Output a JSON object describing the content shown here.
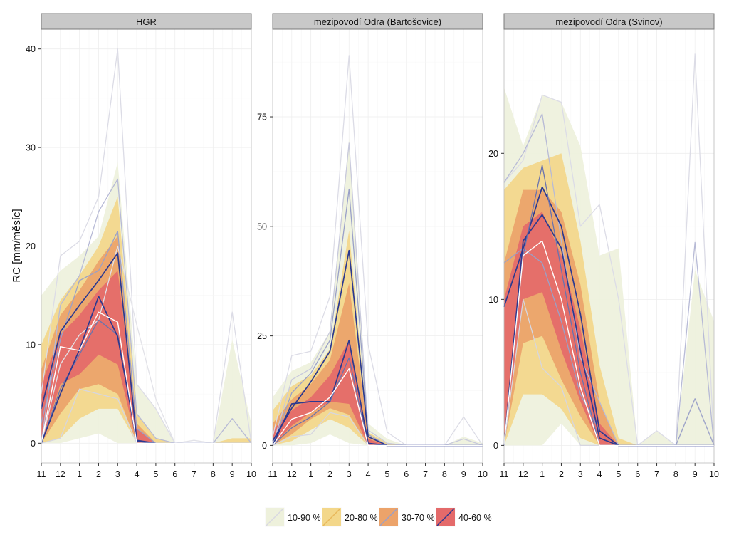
{
  "chart_data": {
    "type": "area",
    "ylabel": "RC [mm/měsíc]",
    "months": [
      "11",
      "12",
      "1",
      "2",
      "3",
      "4",
      "5",
      "6",
      "7",
      "8",
      "9",
      "10"
    ],
    "legend_position": "bottom",
    "band_colors": {
      "10-90": "#eef1dc",
      "20-80": "#f3d78a",
      "30-70": "#eca36a",
      "40-60": "#e46a6a"
    },
    "legend": [
      {
        "label": "10-90 %",
        "fill": "#eef1dc",
        "line": "#d8d8e2"
      },
      {
        "label": "20-80 %",
        "fill": "#f3d78a",
        "line": "#e8b75a"
      },
      {
        "label": "30-70 %",
        "fill": "#eca36a",
        "line": "#9aa0c8"
      },
      {
        "label": "40-60 %",
        "fill": "#e46a6a",
        "line": "#2b3990"
      }
    ],
    "panels": [
      {
        "title": "HGR",
        "ylim": [
          -2,
          42
        ],
        "yticks": [
          0,
          10,
          20,
          30,
          40
        ],
        "bands": [
          {
            "level": "10-90",
            "upper": [
              15.0,
              17.5,
              19.0,
              21.0,
              28.5,
              6.0,
              3.5,
              0,
              0,
              0,
              10.5,
              2.0
            ],
            "lower": [
              0,
              0,
              0.5,
              1.0,
              0,
              0,
              0,
              0,
              0,
              0,
              0,
              0
            ]
          },
          {
            "level": "20-80",
            "upper": [
              10.0,
              14.5,
              17.0,
              20.0,
              25.0,
              3.0,
              0.5,
              0,
              0,
              0,
              0.5,
              0.5
            ],
            "lower": [
              0,
              0.5,
              2.5,
              3.5,
              3.5,
              0,
              0,
              0,
              0,
              0,
              0,
              0
            ]
          },
          {
            "level": "30-70",
            "upper": [
              7.5,
              13.0,
              15.5,
              18.5,
              21.0,
              2.0,
              0,
              0,
              0,
              0,
              0,
              0
            ],
            "lower": [
              0,
              3.0,
              5.5,
              6.0,
              5.0,
              0,
              0,
              0,
              0,
              0,
              0,
              0
            ]
          },
          {
            "level": "40-60",
            "upper": [
              6.0,
              11.0,
              13.0,
              15.5,
              17.5,
              1.5,
              0,
              0,
              0,
              0,
              0,
              0
            ],
            "lower": [
              0,
              6.0,
              7.0,
              9.0,
              8.0,
              0,
              0,
              0,
              0,
              0,
              0,
              0
            ]
          }
        ],
        "lines": [
          {
            "color": "#dcdce6",
            "values": [
              5.0,
              19.0,
              20.5,
              25.0,
              40.0,
              6.0,
              3.5,
              0,
              0,
              0,
              13.3,
              0
            ]
          },
          {
            "color": "#e2e2e8",
            "values": [
              0,
              8.0,
              11.0,
              12.5,
              20.0,
              12.0,
              4.5,
              0,
              0.3,
              0,
              0,
              0
            ]
          },
          {
            "color": "#b7bad6",
            "values": [
              0,
              14.0,
              17.0,
              23.5,
              26.8,
              3.0,
              0.5,
              0,
              0,
              0,
              2.5,
              0
            ]
          },
          {
            "color": "#d6d6e0",
            "values": [
              0,
              0.5,
              5.5,
              5.0,
              4.5,
              0,
              0,
              0,
              0,
              0,
              0,
              0
            ]
          },
          {
            "color": "#9aa0c8",
            "values": [
              2.0,
              10.5,
              16.5,
              17.5,
              21.5,
              1.5,
              0,
              0,
              0,
              0,
              0,
              0
            ]
          },
          {
            "color": "#6a73ae",
            "values": [
              0,
              5.5,
              9.0,
              12.5,
              11.0,
              0,
              0,
              0,
              0,
              0,
              0,
              0
            ]
          },
          {
            "color": "#2b3990",
            "values": [
              3.5,
              11.3,
              14.0,
              16.5,
              19.3,
              0.3,
              0,
              0,
              0,
              0,
              0,
              0
            ]
          },
          {
            "color": "#2b3990",
            "values": [
              0,
              5.0,
              9.5,
              14.9,
              10.8,
              0.2,
              0,
              0,
              0,
              0,
              0,
              0
            ]
          },
          {
            "color": "#ffffff",
            "values": [
              0,
              9.8,
              9.4,
              13.3,
              12.3,
              0,
              0,
              0,
              0,
              0,
              0,
              0
            ]
          }
        ]
      },
      {
        "title": "mezipovodí Odra (Bartošovice)",
        "ylim": [
          -4,
          95
        ],
        "yticks": [
          0,
          25,
          50,
          75
        ],
        "bands": [
          {
            "level": "10-90",
            "upper": [
              11.0,
              17.0,
              19.0,
              26.0,
              70.0,
              5.0,
              1.5,
              0,
              0,
              0,
              2.0,
              0.5
            ],
            "lower": [
              0,
              0,
              0.5,
              2.5,
              0.5,
              0,
              0,
              0,
              0,
              0,
              0,
              0
            ]
          },
          {
            "level": "20-80",
            "upper": [
              8.0,
              13.5,
              16.0,
              22.0,
              49.0,
              3.0,
              0.5,
              0,
              0,
              0,
              0,
              0
            ],
            "lower": [
              0,
              1.0,
              3.5,
              6.0,
              4.0,
              0,
              0,
              0,
              0,
              0,
              0,
              0
            ]
          },
          {
            "level": "30-70",
            "upper": [
              5.0,
              10.5,
              14.0,
              19.5,
              37.0,
              2.0,
              0,
              0,
              0,
              0,
              0,
              0
            ],
            "lower": [
              0,
              2.5,
              6.0,
              8.5,
              7.0,
              0,
              0,
              0,
              0,
              0,
              0,
              0
            ]
          },
          {
            "level": "40-60",
            "upper": [
              3.5,
              8.0,
              11.0,
              16.0,
              24.0,
              1.5,
              0,
              0,
              0,
              0,
              0,
              0
            ],
            "lower": [
              0,
              4.5,
              7.5,
              10.0,
              9.5,
              0,
              0,
              0,
              0,
              0,
              0,
              0
            ]
          }
        ],
        "lines": [
          {
            "color": "#dcdce6",
            "values": [
              2.0,
              20.5,
              21.5,
              34.0,
              89.0,
              23.0,
              3.0,
              0,
              0,
              0,
              6.5,
              0
            ]
          },
          {
            "color": "#c8c9dc",
            "values": [
              0,
              15.0,
              17.5,
              26.0,
              69.0,
              3.5,
              0.5,
              0,
              0,
              0,
              1.5,
              0
            ]
          },
          {
            "color": "#9aa0c8",
            "values": [
              0,
              12.0,
              16.5,
              24.0,
              58.5,
              2.5,
              0,
              0,
              0,
              0,
              0,
              0
            ]
          },
          {
            "color": "#d6d6e0",
            "values": [
              0,
              2.0,
              2.5,
              7.5,
              6.5,
              0,
              0,
              0,
              0,
              0,
              0,
              0
            ]
          },
          {
            "color": "#2b3990",
            "values": [
              1.0,
              8.5,
              14.5,
              21.5,
              44.5,
              2.0,
              0,
              0,
              0,
              0,
              0,
              0
            ]
          },
          {
            "color": "#2b3990",
            "values": [
              0,
              9.5,
              10.0,
              10.0,
              24.0,
              0.5,
              0,
              0,
              0,
              0,
              0,
              0
            ]
          },
          {
            "color": "#6a73ae",
            "values": [
              0,
              4.0,
              6.5,
              10.0,
              20.0,
              0,
              0,
              0,
              0,
              0,
              0,
              0
            ]
          },
          {
            "color": "#ffffff",
            "values": [
              0,
              6.0,
              7.5,
              11.0,
              17.5,
              0,
              0,
              0,
              0,
              0,
              0,
              0
            ]
          }
        ]
      },
      {
        "title": "mezipovodí Odra (Svinov)",
        "ylim": [
          -1.2,
          28.5
        ],
        "yticks": [
          0,
          10,
          20
        ],
        "bands": [
          {
            "level": "10-90",
            "upper": [
              24.5,
              20.5,
              24.0,
              23.5,
              20.5,
              13.0,
              13.5,
              0,
              1.0,
              0,
              12.0,
              8.5
            ],
            "lower": [
              0,
              0,
              0,
              1.5,
              0,
              0,
              0,
              0,
              0,
              0,
              0,
              0
            ]
          },
          {
            "level": "20-80",
            "upper": [
              17.5,
              19.0,
              19.5,
              20.0,
              14.0,
              5.5,
              0.5,
              0,
              0,
              0,
              0,
              0
            ],
            "lower": [
              0,
              3.5,
              3.5,
              2.5,
              0.5,
              0,
              0,
              0,
              0,
              0,
              0,
              0
            ]
          },
          {
            "level": "30-70",
            "upper": [
              12.5,
              17.5,
              17.5,
              16.0,
              11.0,
              3.0,
              0,
              0,
              0,
              0,
              0,
              0
            ],
            "lower": [
              0,
              7.0,
              7.5,
              4.5,
              2.0,
              0,
              0,
              0,
              0,
              0,
              0,
              0
            ]
          },
          {
            "level": "40-60",
            "upper": [
              10.0,
              15.0,
              16.0,
              13.0,
              8.0,
              1.5,
              0,
              0,
              0,
              0,
              0,
              0
            ],
            "lower": [
              0,
              10.0,
              10.5,
              6.5,
              3.0,
              0,
              0,
              0,
              0,
              0,
              0,
              0
            ]
          }
        ],
        "lines": [
          {
            "color": "#dcdce6",
            "values": [
              18.0,
              19.5,
              24.0,
              23.5,
              15.0,
              16.5,
              10.0,
              0,
              1.0,
              0,
              26.8,
              0
            ]
          },
          {
            "color": "#b7bad6",
            "values": [
              18.0,
              20.0,
              22.7,
              14.0,
              6.0,
              3.0,
              0,
              0,
              0,
              0,
              13.9,
              0
            ]
          },
          {
            "color": "#9aa0c8",
            "values": [
              12.5,
              13.5,
              12.5,
              8.5,
              3.5,
              1.0,
              0,
              0,
              0,
              0,
              3.2,
              0
            ]
          },
          {
            "color": "#d6d6e0",
            "values": [
              0,
              10.0,
              5.3,
              4.0,
              0,
              0,
              0,
              0,
              0,
              0,
              0,
              0
            ]
          },
          {
            "color": "#2b3990",
            "values": [
              9.5,
              13.5,
              17.7,
              15.0,
              9.0,
              1.0,
              0,
              0,
              0,
              0,
              0,
              0
            ]
          },
          {
            "color": "#2b3990",
            "values": [
              0,
              14.0,
              15.8,
              13.5,
              6.5,
              0.5,
              0,
              0,
              0,
              0,
              0,
              0
            ]
          },
          {
            "color": "#6a73ae",
            "values": [
              0,
              13.0,
              19.2,
              12.0,
              5.0,
              0,
              0,
              0,
              0,
              0,
              0,
              0
            ]
          },
          {
            "color": "#ffffff",
            "values": [
              0,
              13.0,
              14.0,
              10.0,
              4.0,
              0,
              0,
              0,
              0,
              0,
              0,
              0
            ]
          }
        ]
      }
    ]
  }
}
